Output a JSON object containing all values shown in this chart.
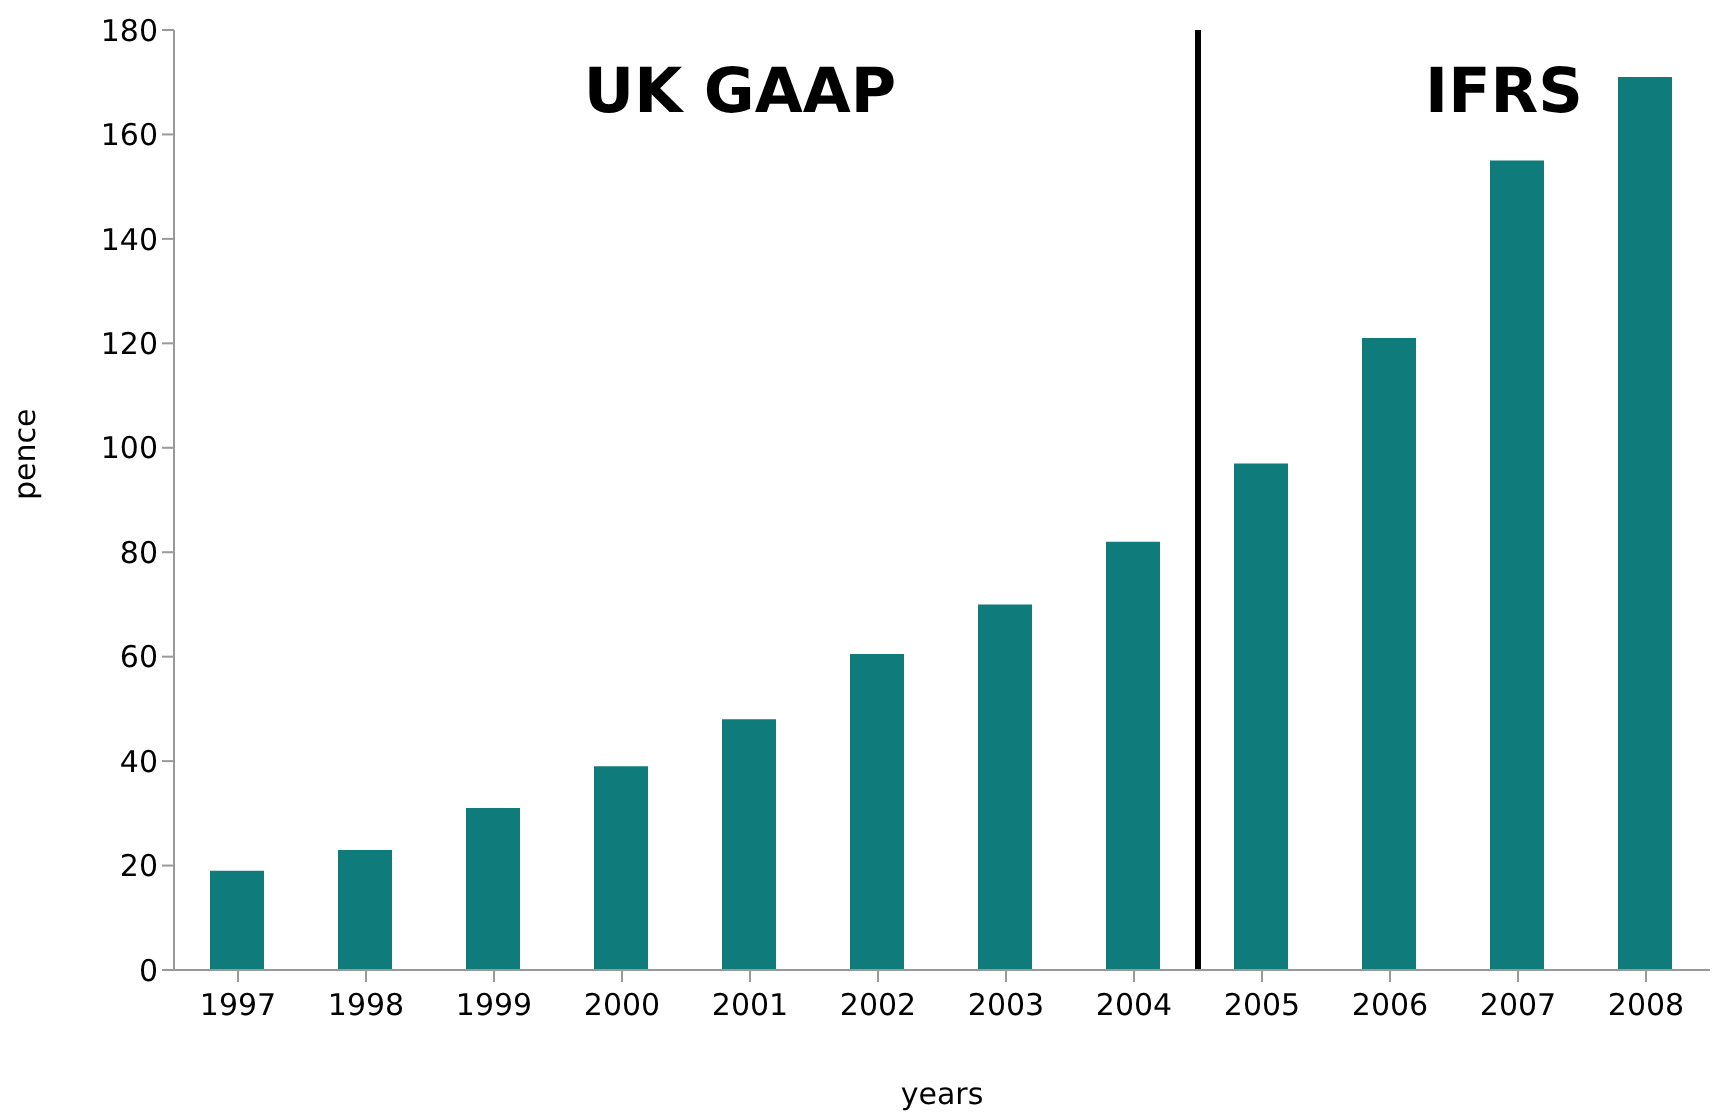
{
  "chart_data": {
    "type": "bar",
    "xlabel": "years",
    "ylabel": "pence",
    "x": [
      1997,
      1998,
      1999,
      2000,
      2001,
      2002,
      2003,
      2004,
      2005,
      2006,
      2007,
      2008
    ],
    "xlim": [
      1996.5,
      2008.5
    ],
    "xticks": [
      1997,
      1998,
      1999,
      2000,
      2001,
      2002,
      2003,
      2004,
      2005,
      2006,
      2007,
      2008
    ],
    "values": [
      19,
      23,
      31,
      39,
      48,
      60.5,
      70,
      82,
      97,
      121,
      155,
      171
    ],
    "color": "#0f7b7b",
    "ylim": [
      0,
      180
    ],
    "yticks": [
      0,
      20,
      40,
      60,
      80,
      100,
      120,
      140,
      160,
      180
    ],
    "ref_lines": [
      {
        "axis": "x",
        "value": 2004.5,
        "color": "#000000"
      }
    ],
    "annotations": [
      "UK GAAP",
      "IFRS"
    ],
    "grid": false,
    "legend": false
  }
}
